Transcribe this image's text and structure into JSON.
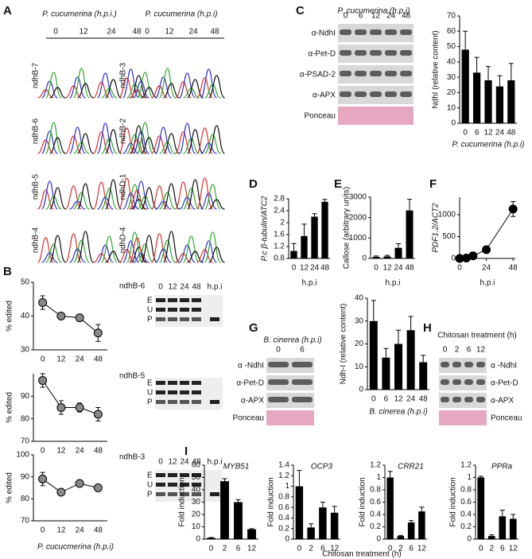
{
  "panel_labels": [
    "A",
    "B",
    "C",
    "D",
    "E",
    "F",
    "G",
    "H",
    "I"
  ],
  "panel_a": {
    "left": {
      "title": "P. cucumerina (h.p.i.)",
      "times": [
        "0",
        "12",
        "24",
        "48"
      ],
      "rows": [
        "ndhB-7",
        "ndhB-6",
        "ndhB-5",
        "ndhB-4"
      ]
    },
    "right": {
      "title": "P. cucumerina (h.p.i)",
      "times": [
        "0",
        "12",
        "24",
        "48"
      ],
      "rows": [
        "ndhB-3",
        "ndhB-2",
        "ndhD-1",
        "ndhD-4"
      ]
    }
  },
  "gels": [
    {
      "times": [
        "0",
        "12",
        "24",
        "48",
        "h.p.i"
      ],
      "bands": [
        "E",
        "U",
        "P"
      ]
    },
    {
      "bands": [
        "E",
        "U",
        "P"
      ]
    },
    {
      "times": [
        "0",
        "12",
        "24",
        "48",
        "h.p.i"
      ],
      "bands": [
        "E",
        "U",
        "P"
      ]
    }
  ],
  "blots": [
    {
      "title": "P. cucumerina (h.p.i)",
      "times": [
        "0",
        "6",
        "12",
        "24",
        "48"
      ],
      "rows": [
        "α-NdhI",
        "α-Pet-D",
        "α-PSAD-2",
        "α-APX",
        "Ponceau"
      ]
    },
    {
      "title": "B. cinerea (h.p.i)",
      "times": [
        "0",
        "6"
      ],
      "rows": [
        "α -NdhI",
        "α-Pet-D",
        "α-APX",
        "Ponceau"
      ]
    },
    {
      "title": "Chitosan treatment (h)",
      "times": [
        "0",
        "2",
        "6",
        "12"
      ],
      "rows": [
        "α -NdhI",
        "α-Pet-D",
        "α-APX",
        "Ponceau"
      ]
    }
  ],
  "shared_labels": {
    "b_x_label": "P. cucucmerina (h.p.i)",
    "i_x_label": "Chitosan treatment (h)"
  },
  "chart_data": [
    {
      "type": "line",
      "title": "ndhB-6",
      "y_label": "% edited",
      "categories": [
        "0",
        "12",
        "24",
        "48"
      ],
      "values": [
        44,
        40,
        39.5,
        35
      ],
      "errors": [
        2,
        0.5,
        0.5,
        2.5
      ],
      "ylim": [
        30,
        50
      ],
      "yticks": [
        30,
        40,
        50
      ],
      "color": "#888888"
    },
    {
      "type": "line",
      "title": "ndhB-5",
      "y_label": "% edited",
      "categories": [
        "0",
        "12",
        "24",
        "48"
      ],
      "values": [
        97,
        85,
        85,
        82
      ],
      "errors": [
        3,
        3,
        2,
        3
      ],
      "ylim": [
        70,
        100
      ],
      "yticks": [
        70,
        80,
        90
      ],
      "color": "#888888"
    },
    {
      "type": "line",
      "title": "ndhB-3",
      "y_label": "% edited",
      "categories": [
        "0",
        "12",
        "24",
        "48"
      ],
      "values": [
        89,
        83,
        87,
        85
      ],
      "errors": [
        3,
        1,
        1,
        1
      ],
      "ylim": [
        70,
        100
      ],
      "yticks": [
        70,
        80,
        90,
        100
      ],
      "color": "#888888"
    },
    {
      "type": "bar",
      "y_label": "NdhI (relative content)",
      "x_label": "P. cucumerina (h.p.i)",
      "categories": [
        "0",
        "6",
        "12",
        "24",
        "48"
      ],
      "values": [
        48,
        33,
        28,
        24,
        28
      ],
      "errors": [
        12,
        10,
        9,
        7,
        11
      ],
      "ylim": [
        0,
        70
      ],
      "yticks": [
        0,
        10,
        20,
        30,
        40,
        50,
        60,
        70
      ],
      "color": "#000000"
    },
    {
      "type": "bar",
      "y_label": "P.c β-tubulin/ATC2",
      "x_label": "h.p.i",
      "categories": [
        "0",
        "12",
        "24",
        "48"
      ],
      "values": [
        1.05,
        1.55,
        2.2,
        2.7
      ],
      "errors": [
        0.25,
        0.4,
        0.1,
        0.08
      ],
      "ylim": [
        0.8,
        2.8
      ],
      "yticks": [
        0.8,
        1.2,
        1.6,
        2,
        2.4,
        2.8
      ],
      "color": "#000000"
    },
    {
      "type": "bar",
      "y_label": "Callose (arbitrary units)",
      "x_label": "h.p.i",
      "categories": [
        "0",
        "12",
        "24",
        "48"
      ],
      "values": [
        80,
        100,
        520,
        2350
      ],
      "errors": [
        40,
        50,
        200,
        550
      ],
      "ylim": [
        0,
        3000
      ],
      "yticks": [
        0,
        1000,
        2000,
        3000
      ],
      "color": "#000000"
    },
    {
      "type": "line",
      "y_label": "PDF1.2/ACT2",
      "x_label": "h.p.i",
      "x": [
        0,
        6,
        12,
        24,
        48
      ],
      "values": [
        0,
        10,
        60,
        200,
        1130
      ],
      "errors": [
        5,
        5,
        15,
        20,
        170
      ],
      "xlim": [
        0,
        50
      ],
      "xticks": [
        0,
        24,
        48
      ],
      "ylim": [
        0,
        1400
      ],
      "yticks": [
        0,
        500,
        1000
      ],
      "color": "#000000"
    },
    {
      "type": "bar",
      "y_label": "Ndh-I (relative content)",
      "x_label": "B. cinerea (h.p.i)",
      "categories": [
        "0",
        "6",
        "12",
        "24",
        "48"
      ],
      "values": [
        30,
        14,
        20,
        26,
        12
      ],
      "errors": [
        9,
        4,
        6,
        6,
        3
      ],
      "ylim": [
        0,
        40
      ],
      "yticks": [
        0,
        10,
        20,
        30,
        40
      ],
      "color": "#000000"
    },
    {
      "type": "bar",
      "title": "MYB51",
      "y_label": "Fold induction",
      "categories": [
        "0",
        "2",
        "6",
        "12"
      ],
      "values": [
        1,
        47,
        30,
        8
      ],
      "errors": [
        0.3,
        2,
        2,
        0.5
      ],
      "ylim": [
        0,
        60
      ],
      "yticks": [
        0,
        10,
        20,
        30,
        40,
        50,
        60
      ],
      "color": "#000000"
    },
    {
      "type": "bar",
      "title": "OCP3",
      "y_label": "Fold induction",
      "categories": [
        "0",
        "2",
        "6",
        "12"
      ],
      "values": [
        1,
        0.22,
        0.6,
        0.5
      ],
      "errors": [
        0.3,
        0.07,
        0.1,
        0.12
      ],
      "ylim": [
        0,
        1.4
      ],
      "yticks": [
        0,
        0.2,
        0.4,
        0.6,
        0.8,
        1,
        1.2,
        1.4
      ],
      "color": "#000000"
    },
    {
      "type": "bar",
      "title": "CRR21",
      "y_label": "Fold induction",
      "categories": [
        "0",
        "2",
        "6",
        "12"
      ],
      "values": [
        1,
        0.05,
        0.27,
        0.45
      ],
      "errors": [
        0.1,
        0.01,
        0.03,
        0.07
      ],
      "ylim": [
        0,
        1.2
      ],
      "yticks": [
        0,
        0.2,
        0.4,
        0.6,
        0.8,
        1,
        1.2
      ],
      "color": "#000000"
    },
    {
      "type": "bar",
      "title": "PPRa",
      "y_label": "Fold induction",
      "categories": [
        "0",
        "2",
        "6",
        "12"
      ],
      "values": [
        1,
        0.05,
        0.37,
        0.33
      ],
      "errors": [
        0.02,
        0.02,
        0.1,
        0.07
      ],
      "ylim": [
        0,
        1.2
      ],
      "yticks": [
        0,
        0.2,
        0.4,
        0.6,
        0.8,
        1,
        1.2
      ],
      "color": "#000000"
    }
  ]
}
